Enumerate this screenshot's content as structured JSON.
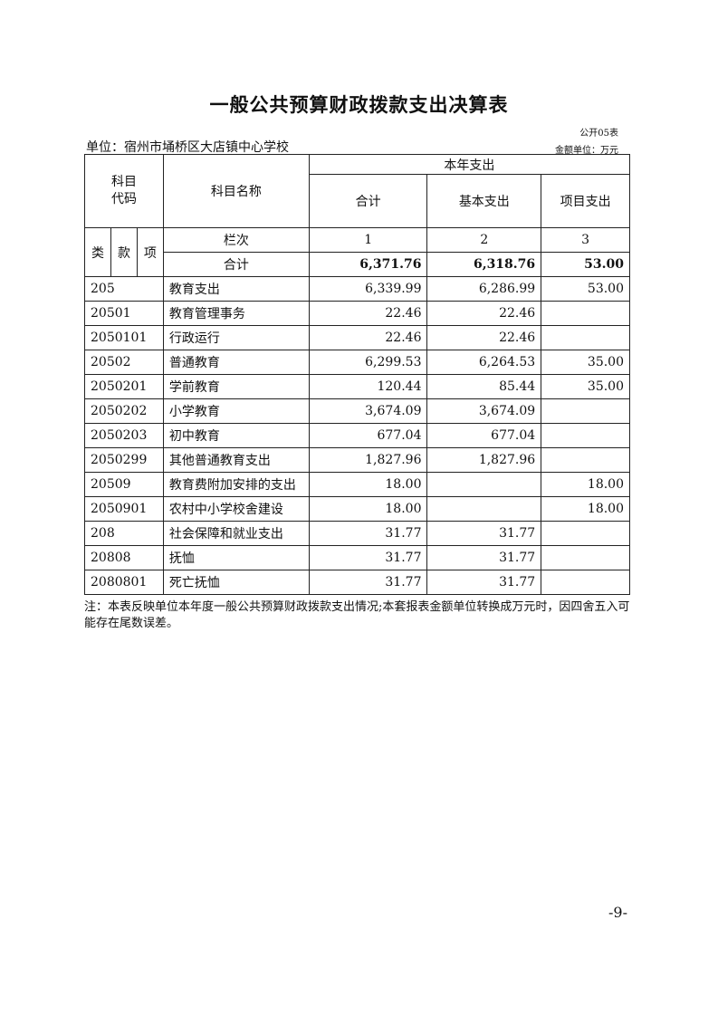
{
  "title": "一般公共预算财政拨款支出决算表",
  "form_no": "公开05表",
  "unit": "单位：宿州市埇桥区大店镇中心学校",
  "money_unit": "金额单位：万元",
  "header": {
    "code": "科目\n代码",
    "name": "科目名称",
    "year_exp": "本年支出",
    "total": "合计",
    "basic": "基本支出",
    "project": "项目支出",
    "lei": "类",
    "kuan": "款",
    "xiang": "项",
    "lanci": "栏次",
    "col1": "1",
    "col2": "2",
    "col3": "3",
    "sum_label": "合计",
    "sum_total": "6,371.76",
    "sum_basic": "6,318.76",
    "sum_project": "53.00"
  },
  "rows": [
    {
      "code": "205",
      "name": "教育支出",
      "total": "6,339.99",
      "basic": "6,286.99",
      "project": "53.00"
    },
    {
      "code": "20501",
      "name": "教育管理事务",
      "total": "22.46",
      "basic": "22.46",
      "project": ""
    },
    {
      "code": "2050101",
      "name": "行政运行",
      "total": "22.46",
      "basic": "22.46",
      "project": ""
    },
    {
      "code": "20502",
      "name": "普通教育",
      "total": "6,299.53",
      "basic": "6,264.53",
      "project": "35.00"
    },
    {
      "code": "2050201",
      "name": "学前教育",
      "total": "120.44",
      "basic": "85.44",
      "project": "35.00"
    },
    {
      "code": "2050202",
      "name": "小学教育",
      "total": "3,674.09",
      "basic": "3,674.09",
      "project": ""
    },
    {
      "code": "2050203",
      "name": "初中教育",
      "total": "677.04",
      "basic": "677.04",
      "project": ""
    },
    {
      "code": "2050299",
      "name": "其他普通教育支出",
      "total": "1,827.96",
      "basic": "1,827.96",
      "project": ""
    },
    {
      "code": "20509",
      "name": "教育费附加安排的支出",
      "total": "18.00",
      "basic": "",
      "project": "18.00"
    },
    {
      "code": "2050901",
      "name": "农村中小学校舍建设",
      "total": "18.00",
      "basic": "",
      "project": "18.00"
    },
    {
      "code": "208",
      "name": "社会保障和就业支出",
      "total": "31.77",
      "basic": "31.77",
      "project": ""
    },
    {
      "code": "20808",
      "name": "抚恤",
      "total": "31.77",
      "basic": "31.77",
      "project": ""
    },
    {
      "code": "2080801",
      "name": "死亡抚恤",
      "total": "31.77",
      "basic": "31.77",
      "project": ""
    }
  ],
  "note": "注：本表反映单位本年度一般公共预算财政拨款支出情况;本套报表金额单位转换成万元时，因四舍五入可能存在尾数误差。",
  "page_number": "-9-"
}
